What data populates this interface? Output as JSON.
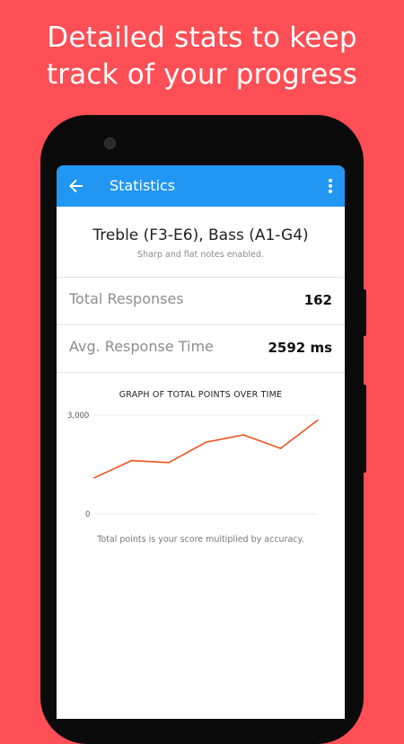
{
  "headline": {
    "line1": "Detailed stats to keep",
    "line2": "track of your progress"
  },
  "colors": {
    "background": "#fd4f55",
    "appbar": "#2196f3",
    "line": "#f4511e"
  },
  "appbar": {
    "title": "Statistics",
    "back_icon": "arrow-left-icon",
    "menu_icon": "more-vert-icon"
  },
  "settings": {
    "title": "Treble (F3-E6), Bass (A1-G4)",
    "subtitle": "Sharp and flat notes enabled."
  },
  "stats": [
    {
      "label": "Total Responses",
      "value": "162"
    },
    {
      "label": "Avg. Response Time",
      "value": "2592 ms"
    }
  ],
  "graph": {
    "title": "GRAPH OF TOTAL POINTS OVER TIME",
    "caption": "Total points is your score multiplied by accuracy."
  },
  "chart_data": {
    "type": "line",
    "title": "GRAPH OF TOTAL POINTS OVER TIME",
    "xlabel": "",
    "ylabel": "",
    "ylim": [
      0,
      3000
    ],
    "y_ticks": [
      "0",
      "3,000"
    ],
    "grid": true,
    "x": [
      1,
      2,
      3,
      4,
      5,
      6,
      7
    ],
    "series": [
      {
        "values": [
          1100,
          1620,
          1560,
          2180,
          2400,
          1990,
          2850
        ]
      }
    ]
  }
}
